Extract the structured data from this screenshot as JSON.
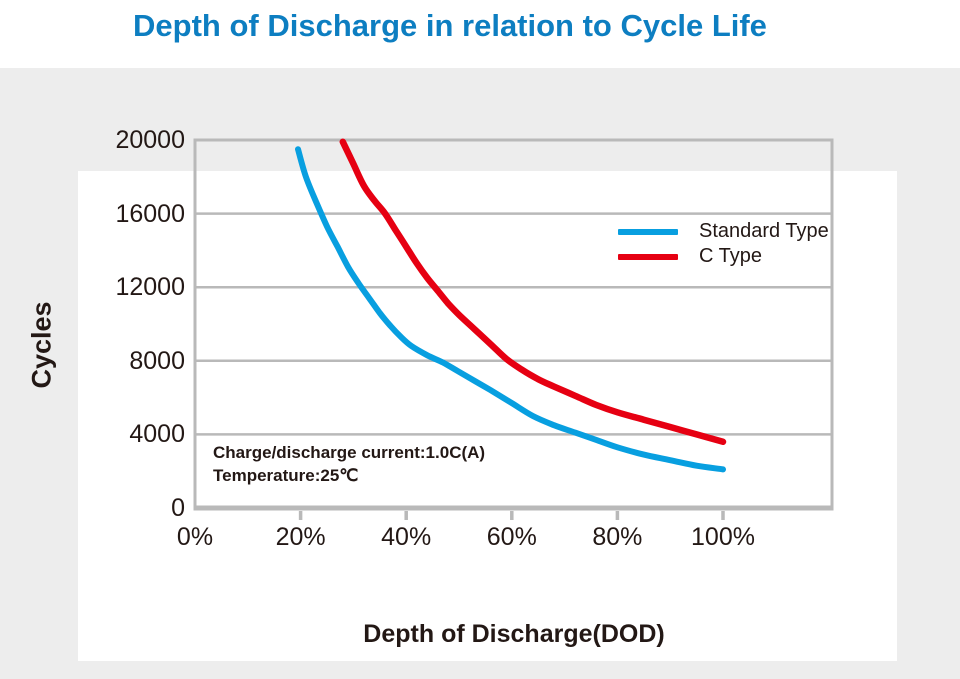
{
  "title": "Depth of Discharge in relation to Cycle Life",
  "colors": {
    "title": "#0d7ec1",
    "band": "#ededed",
    "grid": "#b9b9b9",
    "text": "#231815",
    "standard_type": "#089fe0",
    "c_type": "#e60012"
  },
  "legend": {
    "items": [
      {
        "label": "Standard Type"
      },
      {
        "label": "C Type"
      }
    ]
  },
  "annotation": {
    "line1": "Charge/discharge current:1.0C(A)",
    "line2": "Temperature:25℃"
  },
  "chart_data": {
    "type": "line",
    "title": "Depth of Discharge in relation to Cycle Life",
    "xlabel": "Depth of Discharge(DOD)",
    "ylabel": "Cycles",
    "xlim_percent": [
      0,
      120
    ],
    "ylim": [
      0,
      20000
    ],
    "x_tick_values": [
      0,
      20,
      40,
      60,
      80,
      100
    ],
    "x_tick_labels": [
      "0%",
      "20%",
      "40%",
      "60%",
      "80%",
      "100%"
    ],
    "y_tick_values": [
      0,
      4000,
      8000,
      12000,
      16000,
      20000
    ],
    "y_tick_labels": [
      "0",
      "4000",
      "8000",
      "12000",
      "16000",
      "20000"
    ],
    "grid": "horizontal",
    "legend_position": "inside-right",
    "series": [
      {
        "name": "Standard Type",
        "color": "#089fe0",
        "width": 6,
        "points": [
          [
            19.5,
            19500
          ],
          [
            21,
            18000
          ],
          [
            23,
            16600
          ],
          [
            25,
            15300
          ],
          [
            27,
            14200
          ],
          [
            29,
            13100
          ],
          [
            31,
            12200
          ],
          [
            33,
            11400
          ],
          [
            35,
            10600
          ],
          [
            37,
            9900
          ],
          [
            39,
            9300
          ],
          [
            41,
            8800
          ],
          [
            44,
            8300
          ],
          [
            47,
            7900
          ],
          [
            50,
            7400
          ],
          [
            53,
            6900
          ],
          [
            56,
            6400
          ],
          [
            60,
            5700
          ],
          [
            64,
            5000
          ],
          [
            68,
            4500
          ],
          [
            72,
            4100
          ],
          [
            76,
            3700
          ],
          [
            80,
            3300
          ],
          [
            85,
            2900
          ],
          [
            90,
            2600
          ],
          [
            95,
            2300
          ],
          [
            100,
            2100
          ]
        ]
      },
      {
        "name": "C Type",
        "color": "#e60012",
        "width": 6.5,
        "points": [
          [
            28,
            19900
          ],
          [
            30,
            18700
          ],
          [
            32,
            17500
          ],
          [
            34,
            16700
          ],
          [
            36,
            16000
          ],
          [
            38,
            15100
          ],
          [
            40,
            14200
          ],
          [
            42,
            13300
          ],
          [
            44,
            12500
          ],
          [
            46,
            11800
          ],
          [
            48,
            11100
          ],
          [
            50,
            10500
          ],
          [
            53,
            9700
          ],
          [
            56,
            8900
          ],
          [
            59,
            8100
          ],
          [
            62,
            7500
          ],
          [
            65,
            7000
          ],
          [
            68,
            6600
          ],
          [
            72,
            6100
          ],
          [
            76,
            5600
          ],
          [
            80,
            5200
          ],
          [
            85,
            4800
          ],
          [
            90,
            4400
          ],
          [
            95,
            4000
          ],
          [
            100,
            3600
          ]
        ]
      }
    ]
  }
}
